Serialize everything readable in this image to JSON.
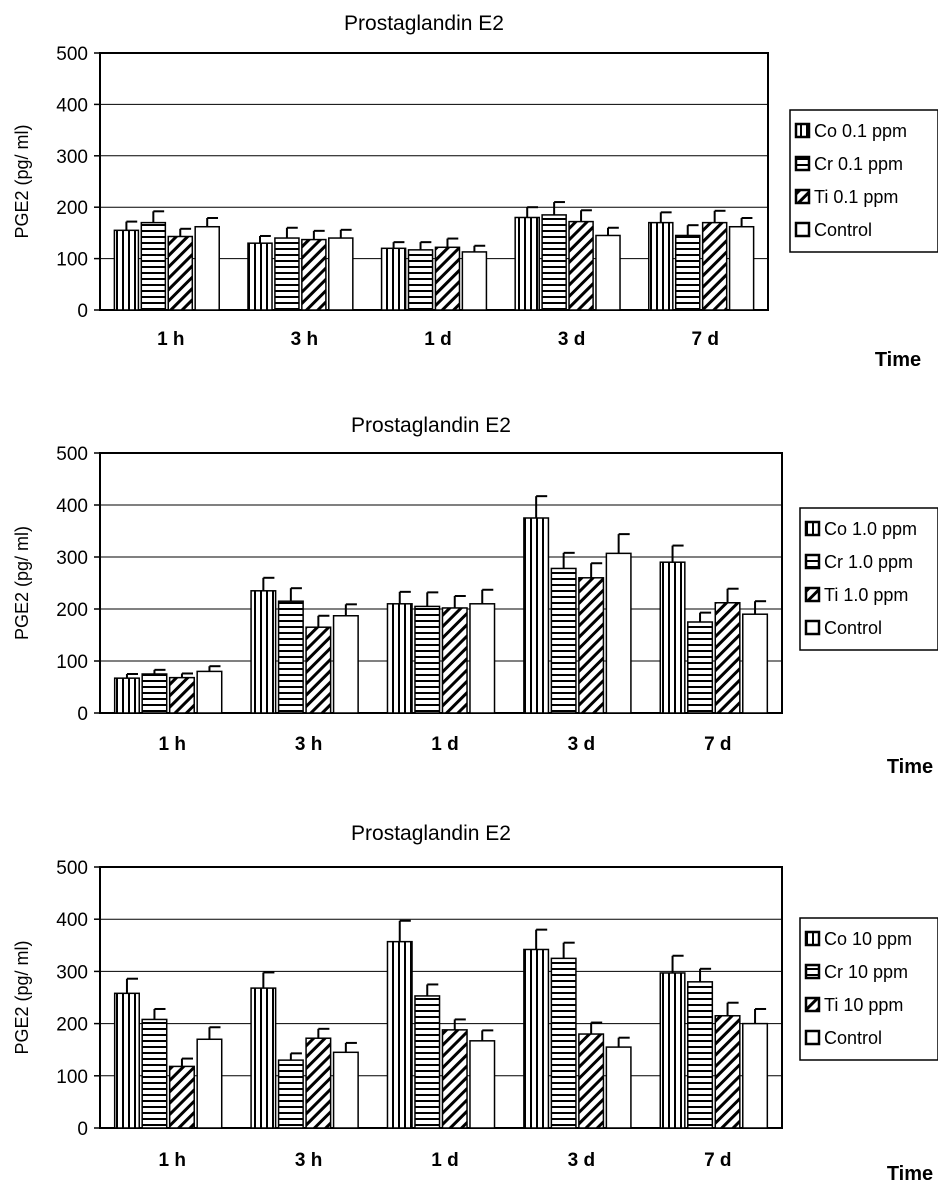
{
  "chart_data": [
    {
      "type": "bar",
      "title": "Prostaglandin E2",
      "xlabel": "Time",
      "ylabel": "PGE2 (pg/ ml)",
      "ylim": [
        0,
        500
      ],
      "yticks": [
        0,
        100,
        200,
        300,
        400,
        500
      ],
      "grid": true,
      "legend_position": "right",
      "categories": [
        "1 h",
        "3 h",
        "1 d",
        "3 d",
        "7 d"
      ],
      "series": [
        {
          "name": "Co 0.1 ppm",
          "pattern": "vertical",
          "values": [
            155,
            130,
            120,
            180,
            170
          ],
          "errors": [
            17,
            14,
            12,
            20,
            20
          ]
        },
        {
          "name": "Cr 0.1 ppm",
          "pattern": "horizontal",
          "values": [
            170,
            140,
            117,
            185,
            145
          ],
          "errors": [
            22,
            20,
            15,
            25,
            20
          ]
        },
        {
          "name": "Ti 0.1 ppm",
          "pattern": "diagonal",
          "values": [
            143,
            137,
            122,
            172,
            170
          ],
          "errors": [
            15,
            17,
            17,
            22,
            23
          ]
        },
        {
          "name": "Control",
          "pattern": "none",
          "values": [
            162,
            140,
            113,
            145,
            162
          ],
          "errors": [
            17,
            16,
            12,
            15,
            17
          ]
        }
      ]
    },
    {
      "type": "bar",
      "title": "Prostaglandin E2",
      "xlabel": "Time",
      "ylabel": "PGE2 (pg/ ml)",
      "ylim": [
        0,
        500
      ],
      "yticks": [
        0,
        100,
        200,
        300,
        400,
        500
      ],
      "grid": true,
      "legend_position": "right",
      "categories": [
        "1 h",
        "3 h",
        "1 d",
        "3 d",
        "7 d"
      ],
      "series": [
        {
          "name": "Co 1.0 ppm",
          "pattern": "vertical",
          "values": [
            67,
            235,
            210,
            375,
            290
          ],
          "errors": [
            8,
            25,
            23,
            42,
            32
          ]
        },
        {
          "name": "Cr 1.0 ppm",
          "pattern": "horizontal",
          "values": [
            75,
            215,
            205,
            278,
            175
          ],
          "errors": [
            8,
            25,
            27,
            30,
            18
          ]
        },
        {
          "name": "Ti 1.0 ppm",
          "pattern": "diagonal",
          "values": [
            68,
            165,
            202,
            260,
            212
          ],
          "errors": [
            8,
            22,
            23,
            28,
            27
          ]
        },
        {
          "name": "Control",
          "pattern": "none",
          "values": [
            80,
            187,
            210,
            307,
            190
          ],
          "errors": [
            10,
            22,
            27,
            37,
            25
          ]
        }
      ]
    },
    {
      "type": "bar",
      "title": "Prostaglandin E2",
      "xlabel": "Time",
      "ylabel": "PGE2 (pg/ ml)",
      "ylim": [
        0,
        500
      ],
      "yticks": [
        0,
        100,
        200,
        300,
        400,
        500
      ],
      "grid": true,
      "legend_position": "right",
      "categories": [
        "1 h",
        "3 h",
        "1 d",
        "3 d",
        "7 d"
      ],
      "series": [
        {
          "name": "Co 10 ppm",
          "pattern": "vertical",
          "values": [
            258,
            268,
            357,
            342,
            297
          ],
          "errors": [
            28,
            30,
            40,
            38,
            33
          ]
        },
        {
          "name": "Cr 10 ppm",
          "pattern": "horizontal",
          "values": [
            208,
            130,
            253,
            325,
            280
          ],
          "errors": [
            20,
            13,
            22,
            30,
            25
          ]
        },
        {
          "name": "Ti 10 ppm",
          "pattern": "diagonal",
          "values": [
            118,
            172,
            188,
            180,
            215
          ],
          "errors": [
            15,
            18,
            20,
            22,
            25
          ]
        },
        {
          "name": "Control",
          "pattern": "none",
          "values": [
            170,
            145,
            167,
            155,
            200
          ],
          "errors": [
            23,
            18,
            20,
            18,
            28
          ]
        }
      ]
    }
  ]
}
